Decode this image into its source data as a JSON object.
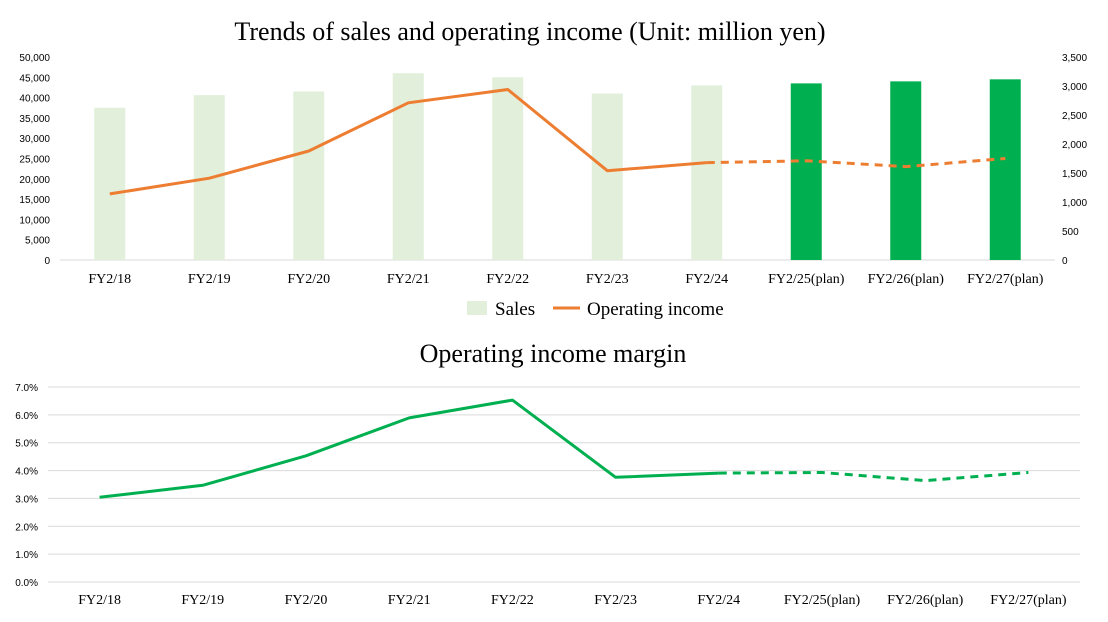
{
  "chart_data": [
    {
      "type": "bar+line",
      "title": "Trends of sales and operating income (Unit: million yen)",
      "categories": [
        "FY2/18",
        "FY2/19",
        "FY2/20",
        "FY2/21",
        "FY2/22",
        "FY2/23",
        "FY2/24",
        "FY2/25(plan)",
        "FY2/26(plan)",
        "FY2/27(plan)"
      ],
      "series": [
        {
          "name": "Sales",
          "chart": "bar",
          "axis": "left",
          "values": [
            37500,
            40600,
            41500,
            46000,
            45000,
            41000,
            43000,
            43500,
            44000,
            44500
          ],
          "colors": [
            "#e2efda",
            "#e2efda",
            "#e2efda",
            "#e2efda",
            "#e2efda",
            "#e2efda",
            "#e2efda",
            "#00b050",
            "#00b050",
            "#00b050"
          ]
        },
        {
          "name": "Operating income",
          "chart": "line",
          "axis": "right",
          "color": "#ed7d31",
          "values": [
            1140,
            1410,
            1880,
            2710,
            2940,
            1540,
            1680,
            1710,
            1610,
            1750
          ],
          "dashed_from_index": 6
        }
      ],
      "left_axis": {
        "ylim": [
          0,
          50000
        ],
        "ticks": [
          "0",
          "5,000",
          "10,000",
          "15,000",
          "20,000",
          "25,000",
          "30,000",
          "35,000",
          "40,000",
          "45,000",
          "50,000"
        ]
      },
      "right_axis": {
        "ylim": [
          0,
          3500
        ],
        "ticks": [
          "0",
          "500",
          "1,000",
          "1,500",
          "2,000",
          "2,500",
          "3,000",
          "3,500"
        ]
      },
      "grid": false,
      "legend": [
        "Sales",
        "Operating income"
      ],
      "legend_placement": "bottom"
    },
    {
      "type": "line",
      "title": "Operating income margin",
      "categories": [
        "FY2/18",
        "FY2/19",
        "FY2/20",
        "FY2/21",
        "FY2/22",
        "FY2/23",
        "FY2/24",
        "FY2/25(plan)",
        "FY2/26(plan)",
        "FY2/27(plan)"
      ],
      "series": [
        {
          "chart": "line",
          "color": "#00b050",
          "values": [
            3.04,
            3.47,
            4.53,
            5.89,
            6.53,
            3.76,
            3.91,
            3.93,
            3.64,
            3.93
          ],
          "dashed_from_index": 6
        }
      ],
      "y_axis": {
        "ylim": [
          0,
          7
        ],
        "ticks": [
          "0.0%",
          "1.0%",
          "2.0%",
          "3.0%",
          "4.0%",
          "5.0%",
          "6.0%",
          "7.0%"
        ]
      },
      "grid": true,
      "legend": null
    }
  ]
}
